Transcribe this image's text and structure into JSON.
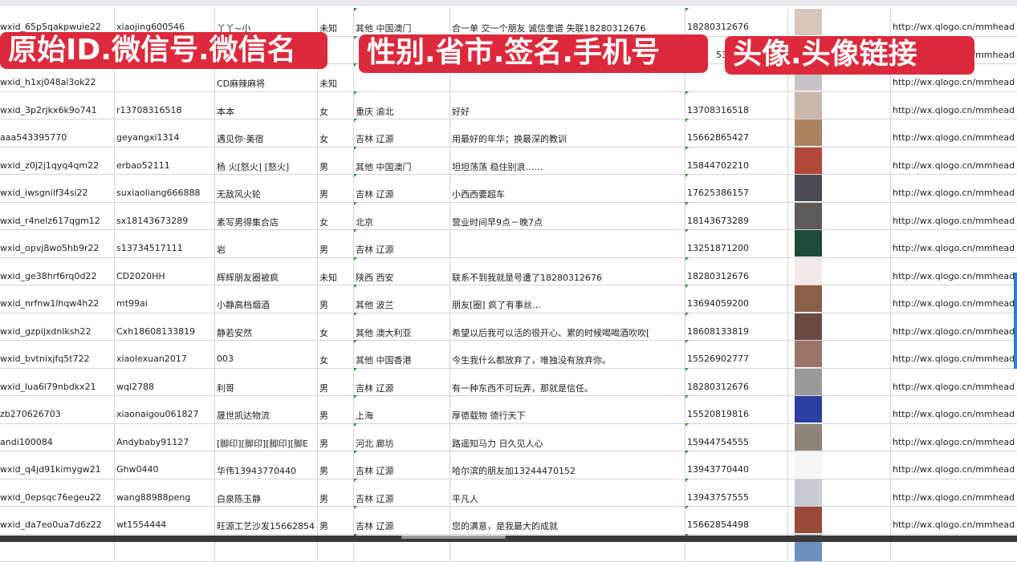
{
  "banners": [
    "原始ID.微信号.微信名",
    "性别.省市.签名.手机号",
    "头像.头像链接"
  ],
  "rows": [
    {
      "id": "wxid_65p5qakpwuie22",
      "wechat": "xiaojing600546",
      "name": "丫丫~小",
      "gender": "未知",
      "region": "其他 中国澳门",
      "signature": "合一单 交一个朋友 诚信奎谱 失联18280312676",
      "phone": "18280312676",
      "avatar_color": "#d8c6bd",
      "link": "http://wx.qlogo.cn/mmhead"
    },
    {
      "id": "",
      "wechat": "",
      "name": "",
      "gender": "",
      "region": "",
      "signature": "",
      "phone": "5386",
      "avatar_color": "#5a7bb0",
      "link": "/mmhead"
    },
    {
      "id": "wxid_h1xj048al3ok22",
      "wechat": "",
      "name": "CD麻辣麻将",
      "gender": "未知",
      "region": "",
      "signature": "",
      "phone": "",
      "avatar_color": "#c9c2c9",
      "link": "http://wx.qlogo.cn/mmhead"
    },
    {
      "id": "wxid_3p2rjkx6k9o741",
      "wechat": "r13708316518",
      "name": "本本",
      "gender": "女",
      "region": "重庆 渝北",
      "signature": "好好",
      "phone": "13708316518",
      "avatar_color": "#cbb7ab",
      "link": "http://wx.qlogo.cn/mmhead"
    },
    {
      "id": "aaa543395770",
      "wechat": "geyangxi1314",
      "name": "遇见你·美宿",
      "gender": "女",
      "region": "吉林 辽源",
      "signature": "用最好的年华；换最深的教训",
      "phone": "15662865427",
      "avatar_color": "#a8835e",
      "link": "http://wx.qlogo.cn/mmhead"
    },
    {
      "id": "wxid_z0j2j1qyq4qm22",
      "wechat": "erbao52111",
      "name": "杨 火[怒火] [怒火]",
      "gender": "男",
      "region": "其他 中国澳门",
      "signature": "坦坦荡荡 稳住别浪……",
      "phone": "15844702210",
      "avatar_color": "#b0493a",
      "link": "http://wx.qlogo.cn/mmhead"
    },
    {
      "id": "wxid_iwsgnilf34si22",
      "wechat": "suxiaoliang666888",
      "name": "无敌风火轮",
      "gender": "男",
      "region": "吉林 辽源",
      "signature": "小西西要超车",
      "phone": "17625386157",
      "avatar_color": "#4a4a52",
      "link": "http://wx.qlogo.cn/mmhead"
    },
    {
      "id": "wxid_r4nelz617qgm12",
      "wechat": "sx18143673289",
      "name": "素写男得集合店",
      "gender": "女",
      "region": "北京",
      "signature": "营业时间早9点－晚7点",
      "phone": "18143673289",
      "avatar_color": "#5f5a55",
      "link": "http://wx.qlogo.cn/mmhead"
    },
    {
      "id": "wxid_opvj8wo5hb9r22",
      "wechat": "s13734517111",
      "name": "岩",
      "gender": "男",
      "region": "吉林 辽源",
      "signature": "",
      "phone": "13251871200",
      "avatar_color": "#1f4a35",
      "link": "http://wx.qlogo.cn/mmhead"
    },
    {
      "id": "wxid_ge38hrf6rq0d22",
      "wechat": "CD2020HH",
      "name": "辉辉朋友圈被疯",
      "gender": "未知",
      "region": "陕西 西安",
      "signature": "联系不到我就是号遭了18280312676",
      "phone": "18280312676",
      "avatar_color": "#f3e9e6",
      "link": "http://wx.qlogo.cn/mmhead"
    },
    {
      "id": "wxid_nrfnw1lhqw4h22",
      "wechat": "mt99ai",
      "name": "小静高档烟酒",
      "gender": "男",
      "region": "其他 波兰",
      "signature": "朋友[圈] 疯了有事丝.,.",
      "phone": "13694059200",
      "avatar_color": "#8a6048",
      "link": "http://wx.qlogo.cn/mmhead"
    },
    {
      "id": "wxid_gzpijxdnlksh22",
      "wechat": "Cxh18608133819",
      "name": "静若安然",
      "gender": "女",
      "region": "其他 澳大利亚",
      "signature": "希望以后我可以活的很开心、累的时候喝喝酒吹吹[",
      "phone": "18608133819",
      "avatar_color": "#6b4a44",
      "link": "http://wx.qlogo.cn/mmhead"
    },
    {
      "id": "wxid_bvtnixjfq5t722",
      "wechat": "xiaolexuan2017",
      "name": "003",
      "gender": "女",
      "region": "其他 中国香港",
      "signature": "今生我什么都放弃了，唯独没有放弃你。",
      "phone": "15526902777",
      "avatar_color": "#9c7468",
      "link": "http://wx.qlogo.cn/mmhead"
    },
    {
      "id": "wxid_lua6l79nbdkx21",
      "wechat": "wql2788",
      "name": "利哥",
      "gender": "男",
      "region": "吉林 辽源",
      "signature": "有一种东西不可玩弄，那就是信任。",
      "phone": "18280312676",
      "avatar_color": "#9a9a98",
      "link": "http://wx.qlogo.cn/mmhead"
    },
    {
      "id": "zb270626703",
      "wechat": "xiaonaigou061827",
      "name": "晟世凯达物流",
      "gender": "男",
      "region": "上海",
      "signature": "厚德载物 德行天下",
      "phone": "15520819816",
      "avatar_color": "#2a3fa0",
      "link": "http://wx.qlogo.cn/mmhead"
    },
    {
      "id": "andi100084",
      "wechat": "Andybaby91127",
      "name": "[脚印][脚印][脚印][脚E",
      "gender": "男",
      "region": "河北 廊坊",
      "signature": "路遥知马力 日久见人心",
      "phone": "15944754555",
      "avatar_color": "#8d847c",
      "link": "http://wx.qlogo.cn/mmhead"
    },
    {
      "id": "wxid_q4jd91kimygw21",
      "wechat": "Ghw0440",
      "name": "华伟13943770440",
      "gender": "男",
      "region": "吉林 辽源",
      "signature": "哈尔滨的朋友加13244470152",
      "phone": "13943770440",
      "avatar_color": "#f5f5f5",
      "link": "http://wx.qlogo.cn/mmhead"
    },
    {
      "id": "wxid_0epsqc76egeu22",
      "wechat": "wang88988peng",
      "name": "白泉陈玉静",
      "gender": "男",
      "region": "吉林 辽源",
      "signature": "平凡人",
      "phone": "13943757555",
      "avatar_color": "#c8ccd2",
      "link": "http://wx.qlogo.cn/mmhead"
    },
    {
      "id": "wxid_da7eo0ua7d6z22",
      "wechat": "wt1554444",
      "name": "旺源工艺沙发15662854",
      "gender": "男",
      "region": "吉林 辽源",
      "signature": "您的满意，是我最大的成就",
      "phone": "15662854498",
      "avatar_color": "#9a4a38",
      "link": "http://wx.qlogo.cn/mmhead"
    },
    {
      "id": "",
      "wechat": "",
      "name": "",
      "gender": "",
      "region": "",
      "signature": "",
      "phone": "",
      "avatar_color": "#6f8fc0",
      "link": ""
    }
  ]
}
